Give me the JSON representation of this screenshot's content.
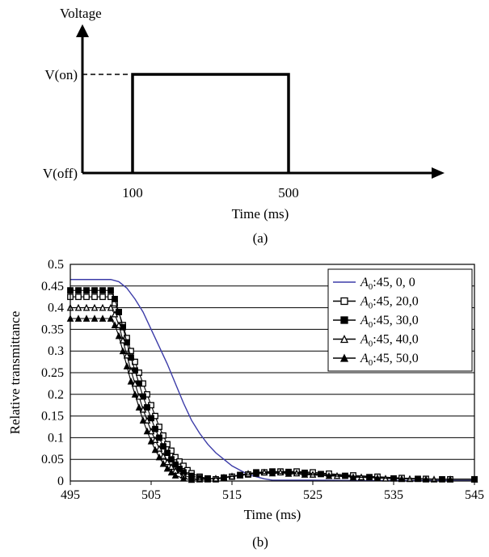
{
  "panels": {
    "a_caption": "(a)",
    "b_caption": "(b)"
  },
  "chart_data": [
    {
      "type": "line",
      "ylabel": "Voltage",
      "xlabel": "Time (ms)",
      "y_levels": [
        "V(on)",
        "V(off)"
      ],
      "x_ticks": [
        "100",
        "500"
      ],
      "series": [
        {
          "x": [
            100,
            100,
            500,
            500
          ],
          "y": [
            "V(off)",
            "V(on)",
            "V(on)",
            "V(off)"
          ]
        }
      ]
    },
    {
      "type": "line",
      "xlabel": "Time (ms)",
      "ylabel": "Relative transmittance",
      "xlim": [
        495,
        545
      ],
      "ylim": [
        0,
        0.5
      ],
      "x_ticks": [
        "495",
        "505",
        "515",
        "525",
        "535",
        "545"
      ],
      "y_ticks": [
        "0",
        "0.05",
        "0.1",
        "0.15",
        "0.2",
        "0.25",
        "0.3",
        "0.35",
        "0.4",
        "0.45",
        "0.5"
      ],
      "grid": "horizontal",
      "legend": "top-right",
      "series": [
        {
          "name": "A0:45, 0,  0",
          "label_sym": "A",
          "label_sub": "0",
          "label_rest": ":45, 0,  0",
          "marker": "none",
          "color": "#3c3ca8",
          "x": [
            495,
            500,
            501,
            502,
            503,
            504,
            505,
            506,
            507,
            508,
            509,
            510,
            511,
            512,
            513,
            514,
            515,
            516,
            517,
            518,
            519,
            520,
            525,
            530,
            535,
            540,
            545
          ],
          "y": [
            0.465,
            0.465,
            0.46,
            0.445,
            0.42,
            0.39,
            0.35,
            0.31,
            0.27,
            0.225,
            0.18,
            0.14,
            0.11,
            0.085,
            0.065,
            0.05,
            0.035,
            0.025,
            0.015,
            0.01,
            0.005,
            0.002,
            0.002,
            0.001,
            0.001,
            0.001,
            0.001
          ]
        },
        {
          "name": "A0:45, 20,0",
          "label_sym": "A",
          "label_sub": "0",
          "label_rest": ":45, 20,0",
          "marker": "open-square",
          "color": "#000000",
          "x": [
            495,
            496,
            497,
            498,
            499,
            500,
            500.5,
            501,
            501.5,
            502,
            502.5,
            503,
            503.5,
            504,
            504.5,
            505,
            505.5,
            506,
            506.5,
            507,
            507.5,
            508,
            508.5,
            509,
            509.5,
            510,
            511,
            512,
            513,
            515,
            517,
            519,
            521,
            523,
            525,
            527,
            530,
            533,
            536,
            539,
            542,
            545
          ],
          "y": [
            0.425,
            0.425,
            0.425,
            0.425,
            0.425,
            0.425,
            0.41,
            0.39,
            0.36,
            0.33,
            0.3,
            0.275,
            0.25,
            0.225,
            0.2,
            0.175,
            0.15,
            0.125,
            0.105,
            0.085,
            0.07,
            0.055,
            0.045,
            0.035,
            0.025,
            0.018,
            0.01,
            0.006,
            0.004,
            0.01,
            0.015,
            0.02,
            0.022,
            0.022,
            0.02,
            0.017,
            0.013,
            0.01,
            0.007,
            0.005,
            0.004,
            0.004
          ]
        },
        {
          "name": "A0:45, 30,0",
          "label_sym": "A",
          "label_sub": "0",
          "label_rest": ":45, 30,0",
          "marker": "filled-square",
          "color": "#000000",
          "x": [
            495,
            496,
            497,
            498,
            499,
            500,
            500.5,
            501,
            501.5,
            502,
            502.5,
            503,
            503.5,
            504,
            504.5,
            505,
            505.5,
            506,
            506.5,
            507,
            507.5,
            508,
            508.5,
            509,
            510,
            511,
            512,
            514,
            516,
            518,
            520,
            522,
            524,
            526,
            529,
            532,
            535,
            538,
            541,
            545
          ],
          "y": [
            0.44,
            0.44,
            0.44,
            0.44,
            0.44,
            0.44,
            0.42,
            0.39,
            0.355,
            0.32,
            0.285,
            0.255,
            0.225,
            0.195,
            0.17,
            0.145,
            0.12,
            0.1,
            0.08,
            0.065,
            0.05,
            0.038,
            0.028,
            0.02,
            0.012,
            0.007,
            0.005,
            0.008,
            0.014,
            0.02,
            0.022,
            0.021,
            0.019,
            0.016,
            0.012,
            0.009,
            0.006,
            0.005,
            0.004,
            0.004
          ]
        },
        {
          "name": "A0:45, 40,0",
          "label_sym": "A",
          "label_sub": "0",
          "label_rest": ":45, 40,0",
          "marker": "open-triangle",
          "color": "#000000",
          "x": [
            495,
            496,
            497,
            498,
            499,
            500,
            500.5,
            501,
            501.5,
            502,
            502.5,
            503,
            503.5,
            504,
            504.5,
            505,
            505.5,
            506,
            506.5,
            507,
            507.5,
            508,
            509,
            510,
            511,
            513,
            515,
            517,
            519,
            521,
            523,
            525,
            528,
            531,
            534,
            537,
            540,
            545
          ],
          "y": [
            0.4,
            0.4,
            0.4,
            0.4,
            0.4,
            0.4,
            0.385,
            0.36,
            0.325,
            0.29,
            0.255,
            0.225,
            0.195,
            0.165,
            0.14,
            0.115,
            0.095,
            0.075,
            0.058,
            0.044,
            0.033,
            0.024,
            0.013,
            0.007,
            0.004,
            0.006,
            0.011,
            0.017,
            0.02,
            0.02,
            0.018,
            0.015,
            0.012,
            0.009,
            0.006,
            0.005,
            0.004,
            0.004
          ]
        },
        {
          "name": "A0:45, 50,0",
          "label_sym": "A",
          "label_sub": "0",
          "label_rest": ":45, 50,0",
          "marker": "filled-triangle",
          "color": "#000000",
          "x": [
            495,
            496,
            497,
            498,
            499,
            500,
            500.5,
            501,
            501.5,
            502,
            502.5,
            503,
            503.5,
            504,
            504.5,
            505,
            505.5,
            506,
            506.5,
            507,
            507.5,
            508,
            509,
            510,
            512,
            514,
            516,
            518,
            520,
            522,
            524,
            527,
            530,
            533,
            536,
            539,
            542,
            545
          ],
          "y": [
            0.375,
            0.375,
            0.375,
            0.375,
            0.375,
            0.375,
            0.36,
            0.335,
            0.3,
            0.265,
            0.23,
            0.2,
            0.17,
            0.14,
            0.115,
            0.092,
            0.072,
            0.055,
            0.04,
            0.029,
            0.02,
            0.013,
            0.006,
            0.003,
            0.004,
            0.008,
            0.013,
            0.017,
            0.018,
            0.017,
            0.015,
            0.012,
            0.009,
            0.007,
            0.005,
            0.004,
            0.004,
            0.004
          ]
        }
      ]
    }
  ]
}
